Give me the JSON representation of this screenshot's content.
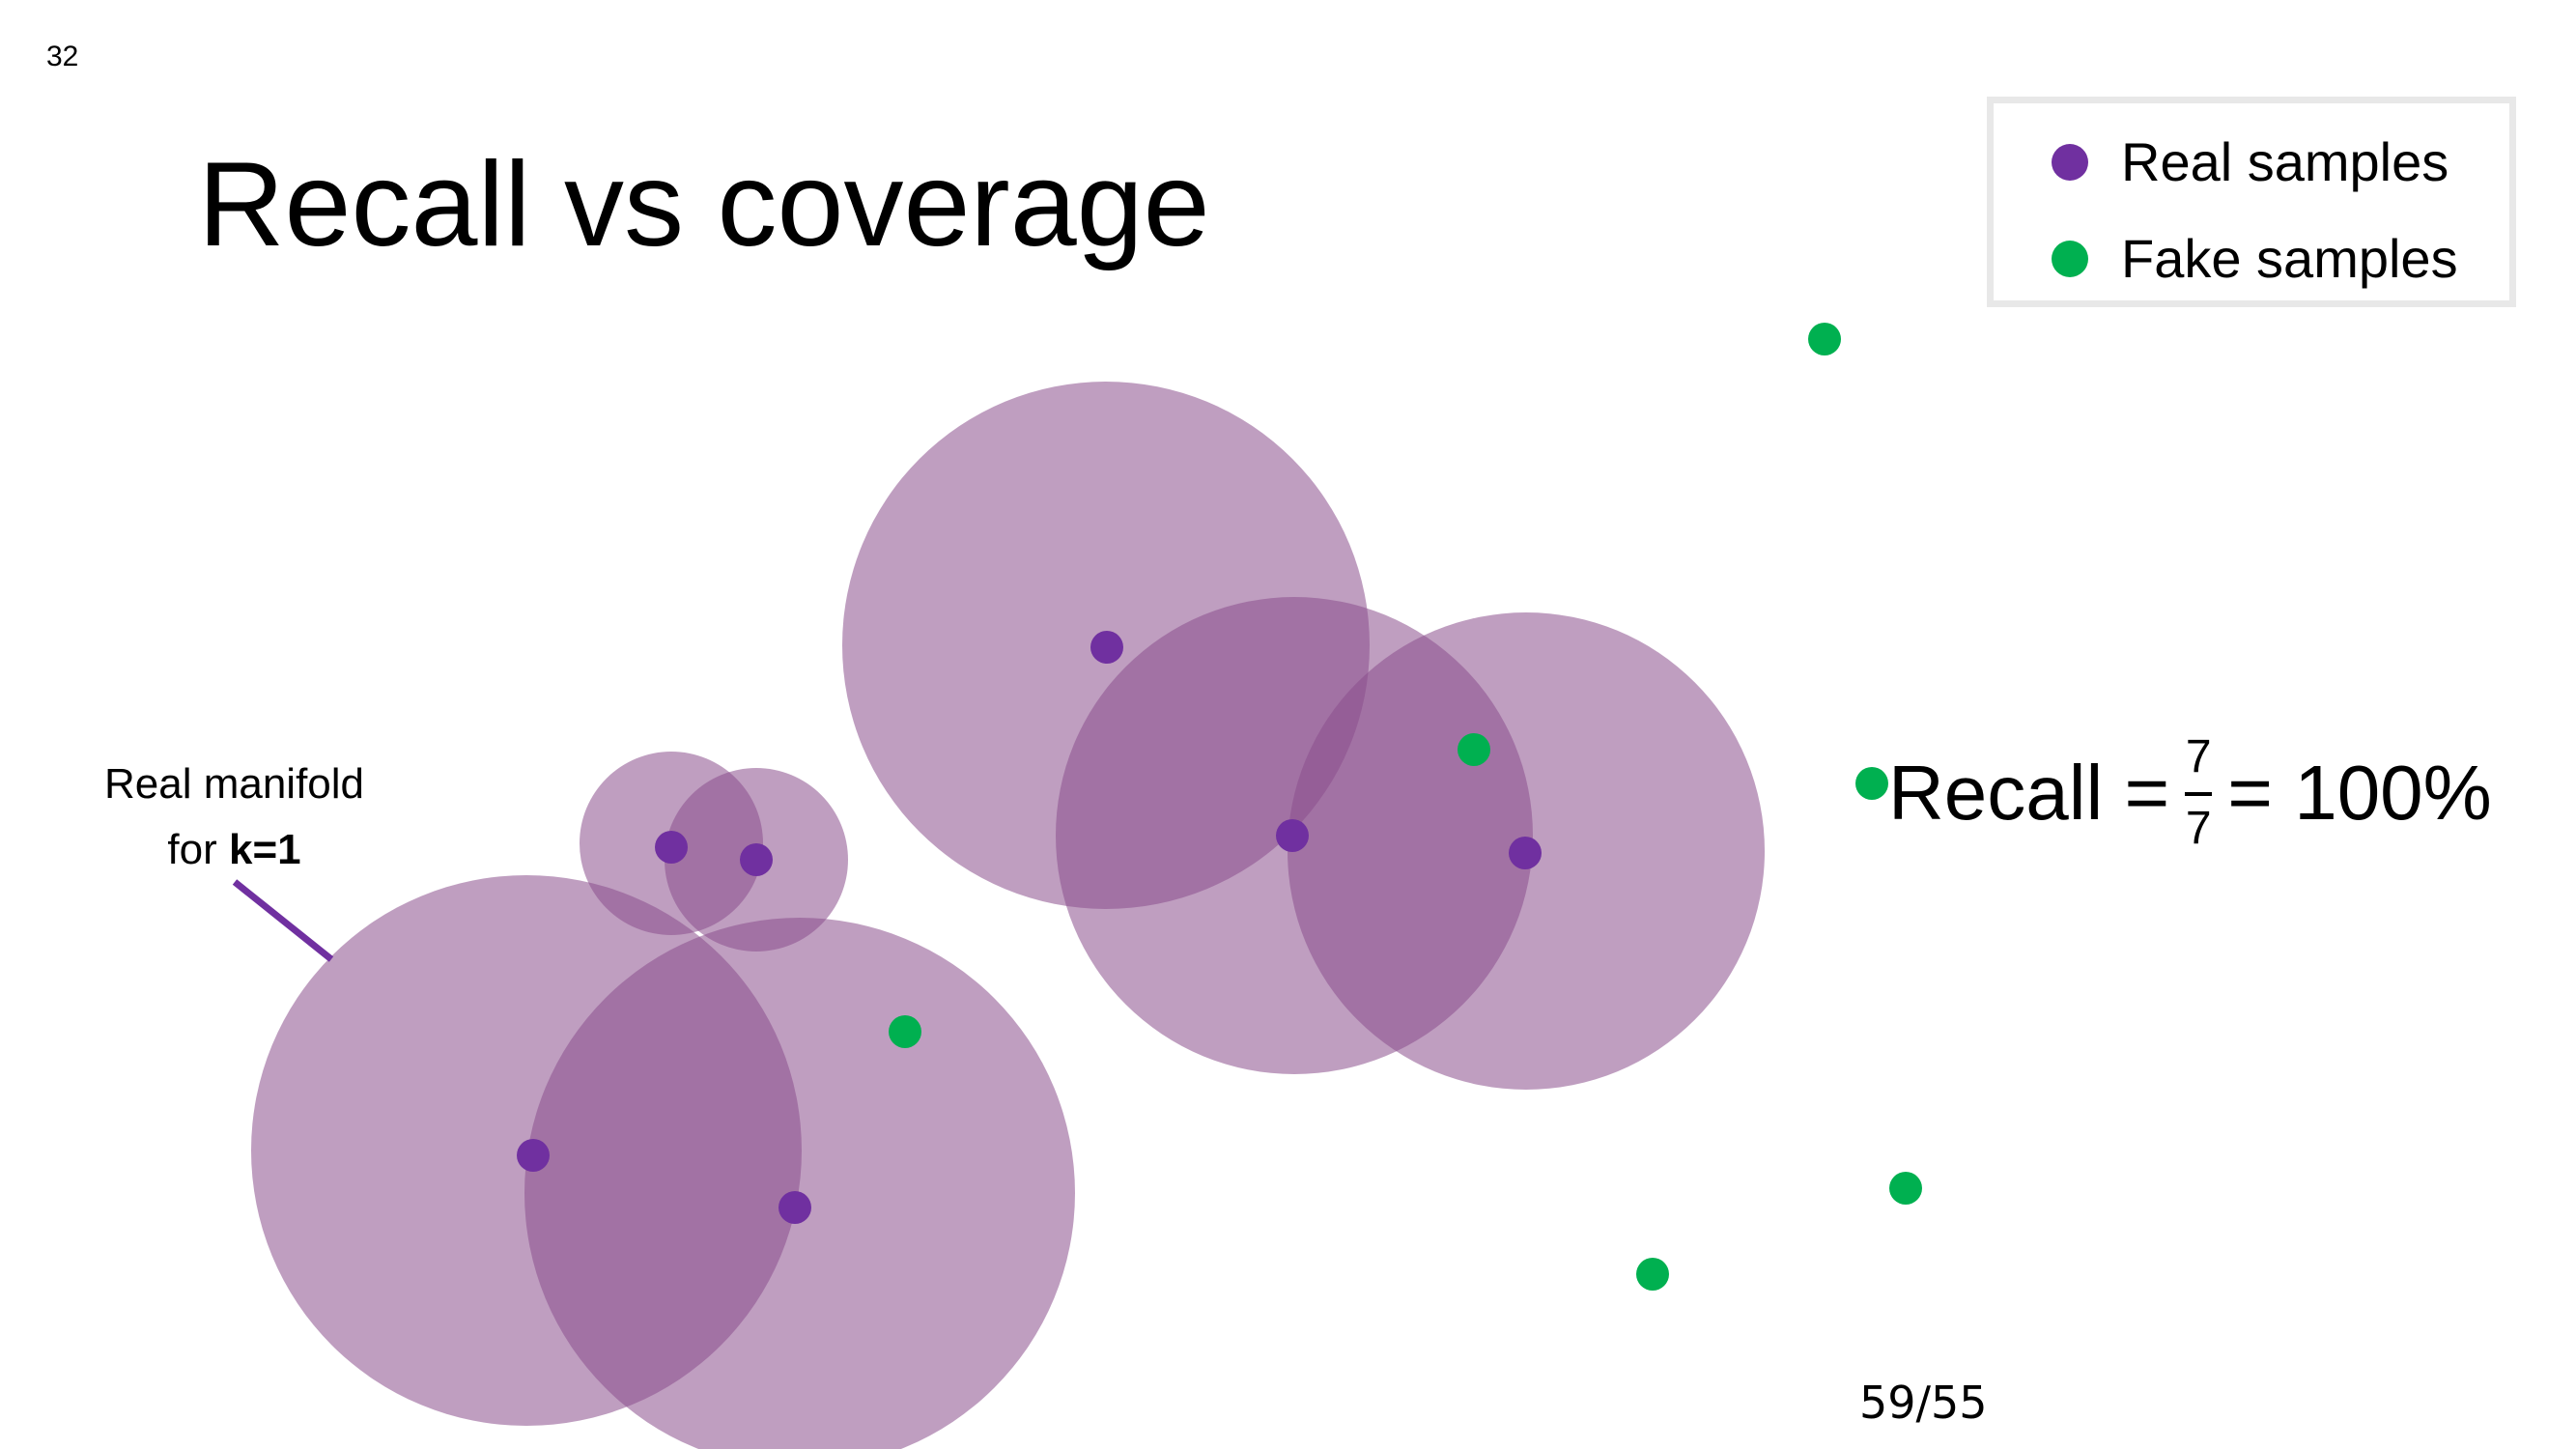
{
  "slide": {
    "number": "32",
    "title": "Recall vs coverage",
    "page_count": "59/55"
  },
  "legend": {
    "items": [
      {
        "label": "Real samples",
        "color": "#7030A0"
      },
      {
        "label": "Fake samples",
        "color": "#00B050"
      }
    ]
  },
  "annotation": {
    "line1": "Real manifold",
    "line2_prefix": "for ",
    "line2_bold": "k=1"
  },
  "formula": {
    "lhs": "Recall =",
    "numerator": "7",
    "denominator": "7",
    "rhs": "= 100%"
  },
  "colors": {
    "real": "#7030A0",
    "fake": "#00B050",
    "manifold_fill": "#8A4F8C",
    "pointer_line": "#7030A0"
  }
}
